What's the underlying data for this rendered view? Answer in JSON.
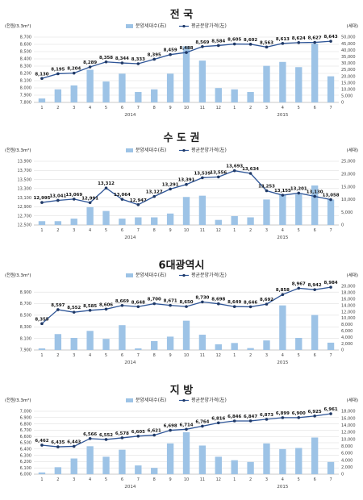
{
  "colors": {
    "bar": "#9dc3e6",
    "line": "#2e5597",
    "marker": "#1f3864",
    "grid": "#d9d9d9"
  },
  "chart_data": [
    {
      "type": "bar",
      "title": "전 국",
      "legend": {
        "bar": "분양세대수(右)",
        "line": "평균분양가격(左)"
      },
      "ylabel_left": "(천원/3.3m²)",
      "ylabel_right": "(세대)",
      "categories": [
        "1",
        "2",
        "3",
        "4",
        "5",
        "6",
        "7",
        "8",
        "9",
        "10",
        "11",
        "12",
        "1",
        "2",
        "3",
        "4",
        "5",
        "6",
        "7"
      ],
      "years": [
        {
          "label": "2014",
          "at_index": 5.5
        },
        {
          "label": "2015",
          "at_index": 15
        }
      ],
      "ylim_left": [
        7800,
        8700
      ],
      "yticks_left": [
        7800,
        7900,
        8000,
        8100,
        8200,
        8300,
        8400,
        8500,
        8600,
        8700
      ],
      "ylim_right": [
        0,
        50000
      ],
      "yticks_right": [
        0,
        5000,
        10000,
        15000,
        20000,
        25000,
        30000,
        35000,
        40000,
        45000,
        50000
      ],
      "series": [
        {
          "name": "분양세대수(右)",
          "type": "bar",
          "axis": "right",
          "values": [
            3000,
            10000,
            13000,
            25000,
            16000,
            22000,
            8000,
            10000,
            22000,
            43000,
            32000,
            11000,
            10000,
            8000,
            28000,
            31000,
            27000,
            45000,
            20000
          ]
        },
        {
          "name": "평균분양가격(左)",
          "type": "line",
          "axis": "left",
          "values": [
            8130,
            8195,
            8204,
            8289,
            8358,
            8344,
            8333,
            8395,
            8459,
            8488,
            8569,
            8584,
            8605,
            8602,
            8563,
            8613,
            8624,
            8627,
            8643
          ],
          "labels": [
            "8,130",
            "8,195",
            "8,204",
            "8,289",
            "8,358",
            "8,344",
            "8,333",
            "8,395",
            "8,459",
            "8,488",
            "8,569",
            "8,584",
            "8,605",
            "8,602",
            "8,563",
            "8,613",
            "8,624",
            "8,627",
            "8,643"
          ]
        }
      ]
    },
    {
      "type": "bar",
      "title": "수 도 권",
      "legend": {
        "bar": "분양세대수(右)",
        "line": "평균분양가격(左)"
      },
      "ylabel_left": "(천원/3.3m²)",
      "ylabel_right": "(세대)",
      "categories": [
        "1",
        "2",
        "3",
        "4",
        "5",
        "6",
        "7",
        "8",
        "9",
        "10",
        "11",
        "12",
        "1",
        "2",
        "3",
        "4",
        "5",
        "6",
        "7"
      ],
      "years": [
        {
          "label": "2014",
          "at_index": 5.5
        },
        {
          "label": "2015",
          "at_index": 15
        }
      ],
      "ylim_left": [
        12500,
        13900
      ],
      "yticks_left": [
        12500,
        12700,
        12900,
        13100,
        13300,
        13500,
        13700,
        13900
      ],
      "ylim_right": [
        0,
        25000
      ],
      "yticks_right": [
        0,
        5000,
        10000,
        15000,
        20000,
        25000
      ],
      "series": [
        {
          "name": "분양세대수(右)",
          "type": "bar",
          "axis": "right",
          "values": [
            1500,
            1500,
            2500,
            7000,
            5500,
            2500,
            3000,
            3000,
            4500,
            11000,
            11500,
            2000,
            3500,
            3000,
            10000,
            12000,
            12000,
            15500,
            10000
          ]
        },
        {
          "name": "평균분양가격(左)",
          "type": "line",
          "axis": "left",
          "values": [
            12995,
            13041,
            13069,
            12991,
            13312,
            13064,
            12947,
            13127,
            13291,
            13391,
            13539,
            13556,
            13693,
            13634,
            13253,
            13155,
            13201,
            13130,
            13058
          ],
          "labels": [
            "12,995",
            "13,041",
            "13,069",
            "12,991",
            "13,312",
            "13,064",
            "12,947",
            "13,127",
            "13,291",
            "13,391",
            "13,539",
            "13,556",
            "13,693",
            "13,634",
            "13,253",
            "13,155",
            "13,201",
            "13,130",
            "13,058"
          ]
        }
      ]
    },
    {
      "type": "bar",
      "title": "6대광역시",
      "legend": {
        "bar": "분양세대수(右)",
        "line": "평균분양가격(左)"
      },
      "ylabel_left": "(천원/3.3m²)",
      "ylabel_right": "(세대)",
      "categories": [
        "1",
        "2",
        "3",
        "4",
        "5",
        "6",
        "7",
        "8",
        "9",
        "10",
        "11",
        "12",
        "1",
        "2",
        "3",
        "4",
        "5",
        "6",
        "7"
      ],
      "years": [
        {
          "label": "2014",
          "at_index": 5.5
        },
        {
          "label": "2015",
          "at_index": 15
        }
      ],
      "ylim_left": [
        7900,
        9000
      ],
      "yticks_left": [
        7900,
        8100,
        8300,
        8500,
        8700,
        8900
      ],
      "ylim_right": [
        0,
        20000
      ],
      "yticks_right": [
        0,
        2000,
        4000,
        6000,
        8000,
        10000,
        12000,
        14000,
        16000,
        18000,
        20000
      ],
      "series": [
        {
          "name": "분양세대수(右)",
          "type": "bar",
          "axis": "right",
          "values": [
            500,
            5000,
            3800,
            6000,
            3500,
            7800,
            500,
            2800,
            4200,
            9200,
            4800,
            1800,
            2200,
            600,
            3000,
            14000,
            3800,
            11000,
            2300
          ]
        },
        {
          "name": "평균분양가격(左)",
          "type": "line",
          "axis": "left",
          "values": [
            8355,
            8597,
            8552,
            8585,
            8606,
            8669,
            8648,
            8700,
            8671,
            8650,
            8730,
            8698,
            8649,
            8646,
            8692,
            8858,
            8967,
            8942,
            8984
          ],
          "labels": [
            "8,355",
            "8,597",
            "8,552",
            "8,585",
            "8,606",
            "8,669",
            "8,648",
            "8,700",
            "8,671",
            "8,650",
            "8,730",
            "8,698",
            "8,649",
            "8,646",
            "8,692",
            "8,858",
            "8,967",
            "8,942",
            "8,984"
          ]
        }
      ]
    },
    {
      "type": "bar",
      "title": "지 방",
      "legend": {
        "bar": "분양세대수(右)",
        "line": "평균분양가격(左)"
      },
      "ylabel_left": "(천원/3.3m²)",
      "ylabel_right": "(세대)",
      "categories": [
        "1",
        "2",
        "3",
        "4",
        "5",
        "6",
        "7",
        "8",
        "9",
        "10",
        "11",
        "12",
        "1",
        "2",
        "3",
        "4",
        "5",
        "6",
        "7"
      ],
      "years": [
        {
          "label": "2014",
          "at_index": 5.5
        },
        {
          "label": "2015",
          "at_index": 15
        }
      ],
      "ylim_left": [
        6000,
        7000
      ],
      "yticks_left": [
        6000,
        6100,
        6200,
        6300,
        6400,
        6500,
        6600,
        6700,
        6800,
        6900,
        7000
      ],
      "ylim_right": [
        0,
        18000
      ],
      "yticks_right": [
        0,
        2000,
        4000,
        6000,
        8000,
        10000,
        12000,
        14000,
        16000,
        18000
      ],
      "series": [
        {
          "name": "분양세대수(右)",
          "type": "bar",
          "axis": "right",
          "values": [
            500,
            2000,
            4500,
            8000,
            5000,
            7000,
            2500,
            1800,
            8800,
            12000,
            8200,
            5000,
            4000,
            3500,
            8800,
            7200,
            7500,
            10500,
            3500
          ]
        },
        {
          "name": "평균분양가격(左)",
          "type": "line",
          "axis": "left",
          "values": [
            6462,
            6435,
            6443,
            6566,
            6552,
            6578,
            6605,
            6621,
            6698,
            6714,
            6764,
            6816,
            6846,
            6847,
            6873,
            6899,
            6900,
            6925,
            6961
          ],
          "labels": [
            "6,462",
            "6,435",
            "6,443",
            "6,566",
            "6,552",
            "6,578",
            "6,605",
            "6,621",
            "6,698",
            "6,714",
            "6,764",
            "6,816",
            "6,846",
            "6,847",
            "6,873",
            "6,899",
            "6,900",
            "6,925",
            "6,961"
          ]
        }
      ]
    }
  ]
}
